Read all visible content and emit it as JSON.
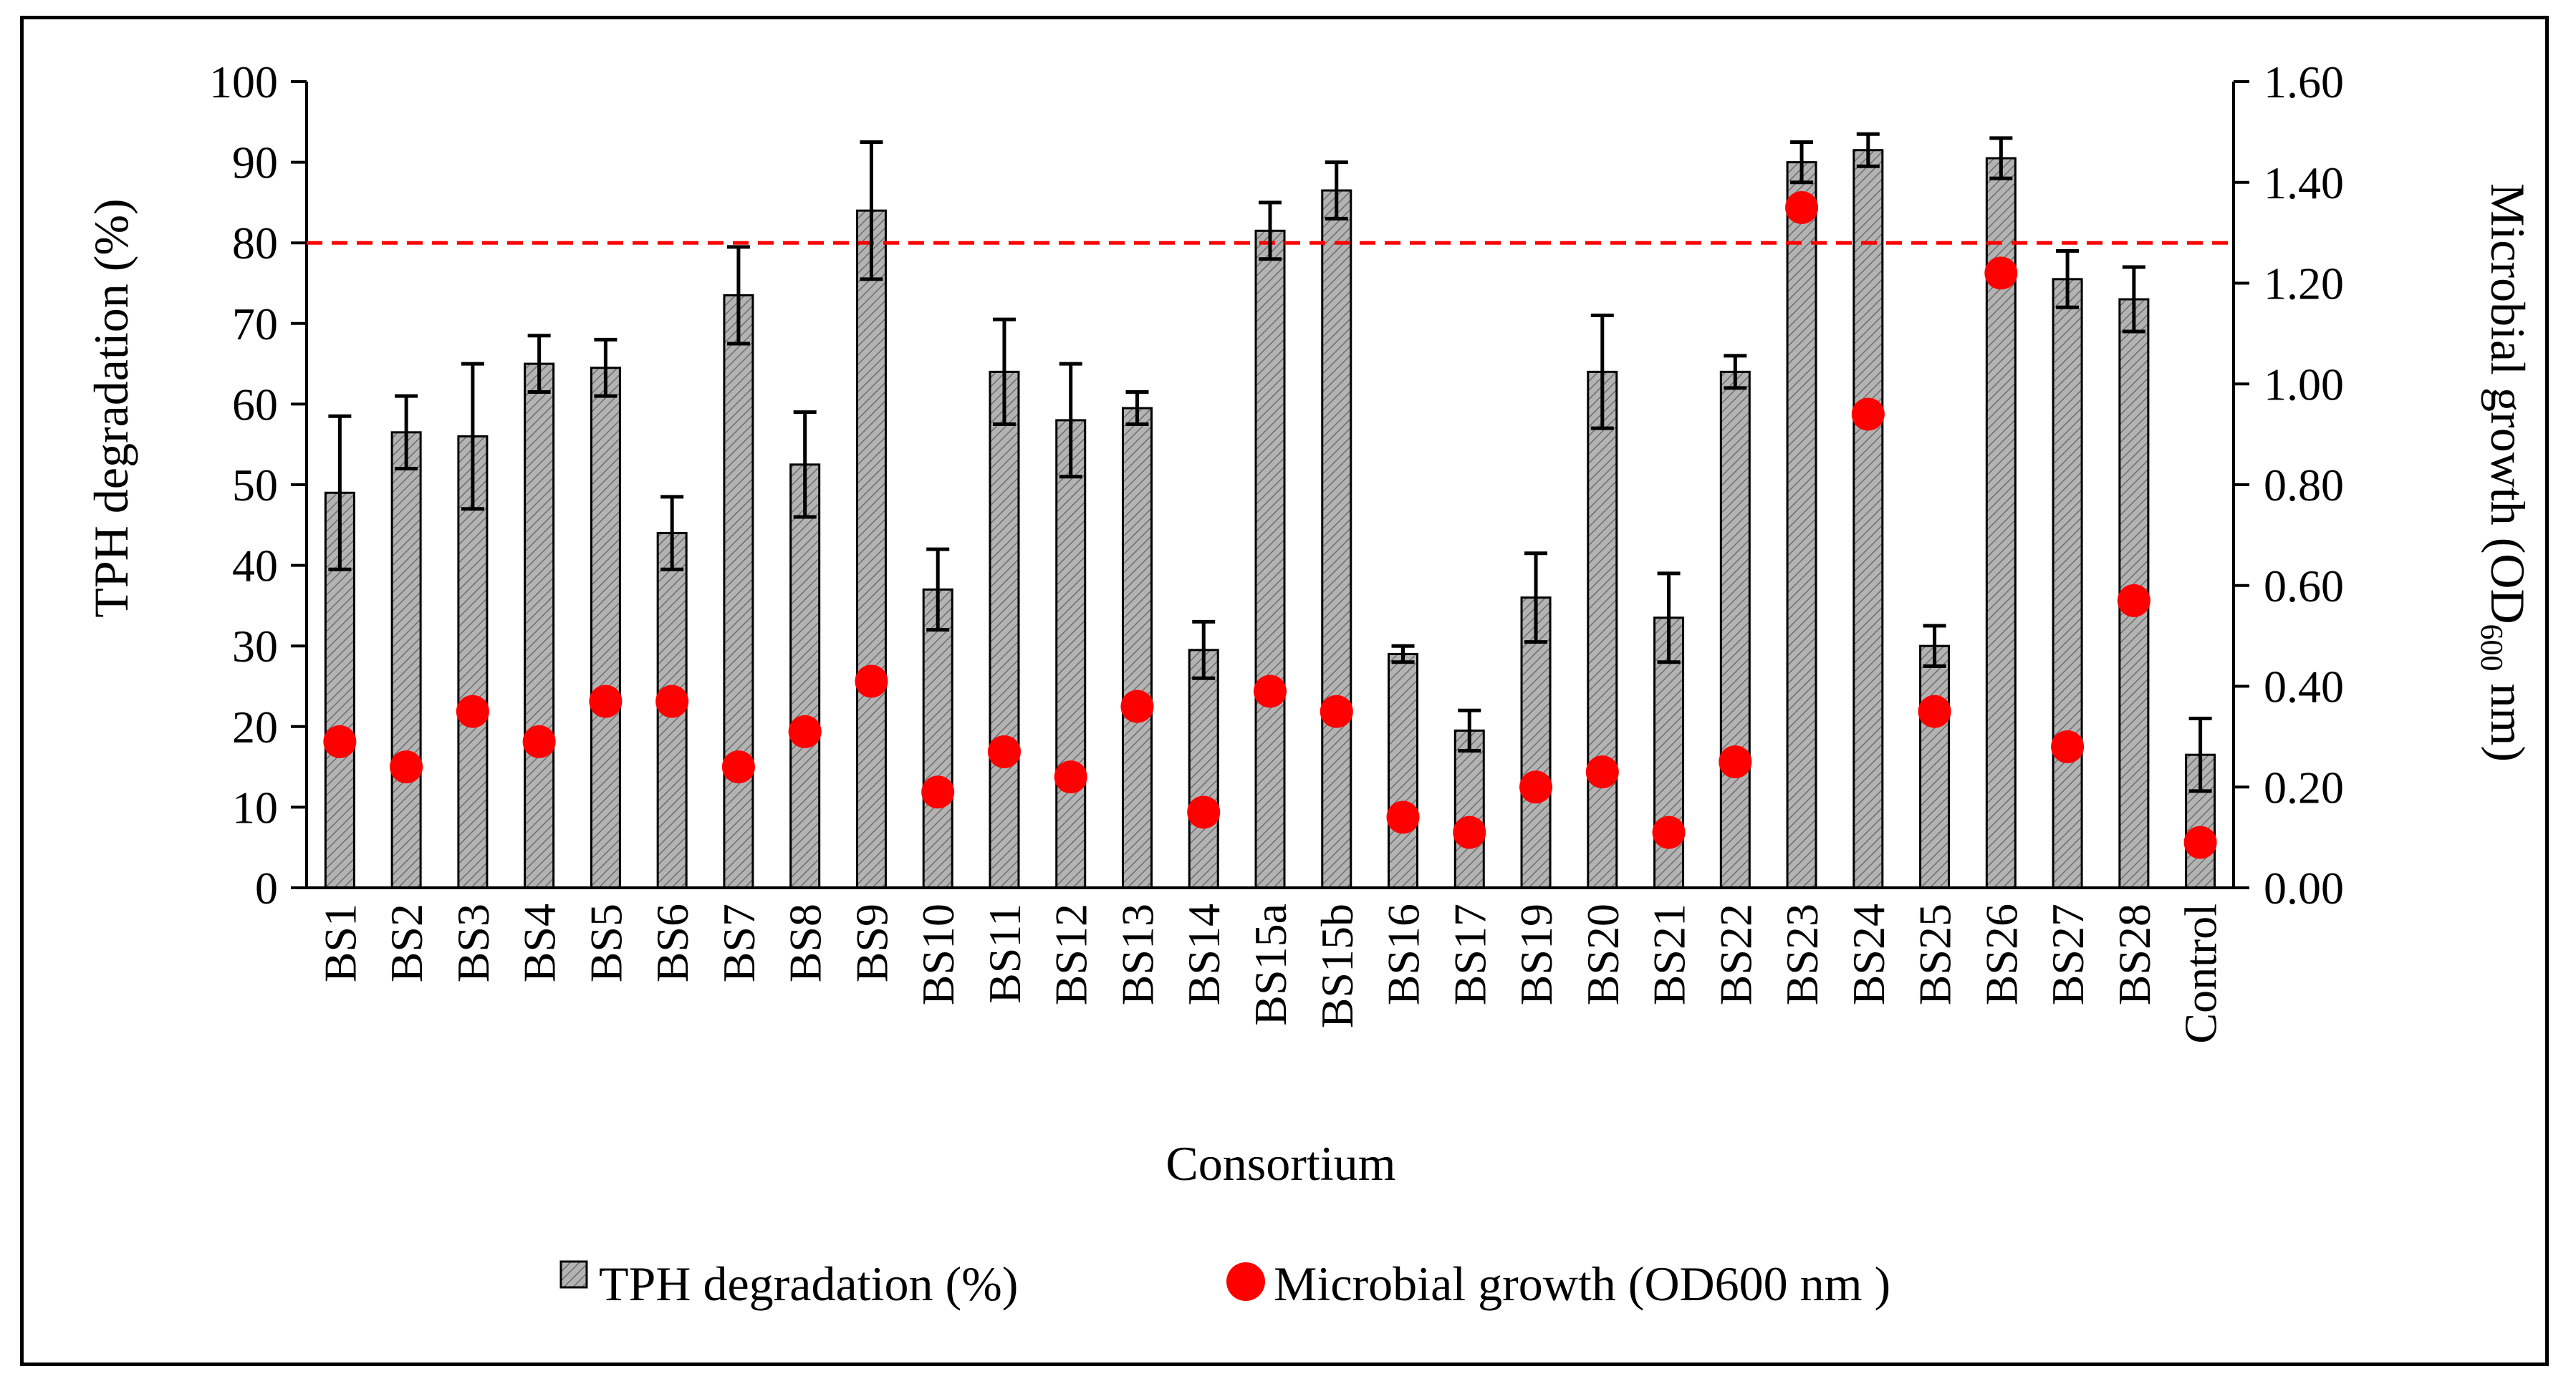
{
  "chart_data": {
    "type": "bar",
    "title": "",
    "xlabel": "Consortium",
    "ylabel_left": "TPH degradation (%)",
    "ylabel_right": "Microbial growth (OD600 nm)",
    "ylabel_right_parts": {
      "main": "Microbial growth (OD",
      "sub": "600",
      "tail": " nm)"
    },
    "ylim_left": [
      0,
      100
    ],
    "ylim_right": [
      0,
      1.6
    ],
    "yticks_left": [
      "0",
      "10",
      "20",
      "30",
      "40",
      "50",
      "60",
      "70",
      "80",
      "90",
      "100"
    ],
    "yticks_right": [
      "0.00",
      "0.20",
      "0.40",
      "0.60",
      "0.80",
      "1.00",
      "1.20",
      "1.40",
      "1.60"
    ],
    "threshold_line": {
      "value": 80,
      "color": "#ff0000",
      "style": "dashed"
    },
    "categories": [
      "BS1",
      "BS2",
      "BS3",
      "BS4",
      "BS5",
      "BS6",
      "BS7",
      "BS8",
      "BS9",
      "BS10",
      "BS11",
      "BS12",
      "BS13",
      "BS14",
      "BS15a",
      "BS15b",
      "BS16",
      "BS17",
      "BS19",
      "BS20",
      "BS21",
      "BS22",
      "BS23",
      "BS24",
      "BS25",
      "BS26",
      "BS27",
      "BS28",
      "Control"
    ],
    "series": [
      {
        "name": "TPH degradation (%)",
        "axis": "left",
        "kind": "bar",
        "color": "#a6a6a6",
        "values": [
          49,
          56.5,
          56,
          65,
          64.5,
          44,
          73.5,
          52.5,
          84,
          37,
          64,
          58,
          59.5,
          29.5,
          81.5,
          86.5,
          29,
          19.5,
          36,
          64,
          33.5,
          64,
          90,
          91.5,
          30,
          90.5,
          75.5,
          73,
          16.5
        ],
        "errors": [
          9.5,
          4.5,
          9,
          3.5,
          3.5,
          4.5,
          6,
          6.5,
          8.5,
          5,
          6.5,
          7,
          2,
          3.5,
          3.5,
          3.5,
          1,
          2.5,
          5.5,
          7,
          5.5,
          2,
          2.5,
          2,
          2.5,
          2.5,
          3.5,
          4,
          4.5
        ]
      },
      {
        "name": "Microbial growth (OD600 nm )",
        "axis": "right",
        "kind": "scatter",
        "color": "#ff0000",
        "values": [
          0.29,
          0.24,
          0.35,
          0.29,
          0.37,
          0.37,
          0.24,
          0.31,
          0.41,
          0.19,
          0.27,
          0.22,
          0.36,
          0.15,
          0.39,
          0.35,
          0.14,
          0.11,
          0.2,
          0.23,
          0.11,
          0.25,
          1.35,
          0.94,
          0.35,
          1.22,
          0.28,
          0.57,
          0.09
        ]
      }
    ],
    "legend": {
      "position": "bottom",
      "items": [
        "TPH degradation (%)",
        "Microbial growth (OD600 nm )"
      ]
    }
  }
}
